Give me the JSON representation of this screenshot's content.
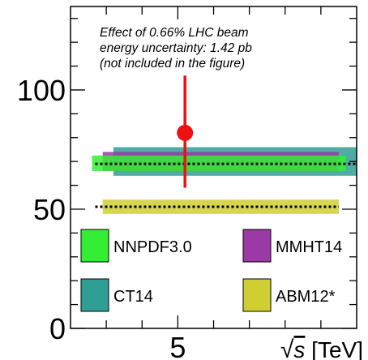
{
  "chart_data": {
    "type": "scatter",
    "title": "",
    "xlabel_prefix": "√",
    "xlabel_var": "s",
    "xlabel_unit": " [TeV]",
    "ylabel": "",
    "xlim": [
      4.7,
      5.5
    ],
    "ylim": [
      0,
      135
    ],
    "x_ticks": [
      5
    ],
    "x_tick_labels": [
      "5"
    ],
    "y_ticks": [
      0,
      50,
      100
    ],
    "y_tick_labels": [
      "0",
      "50",
      "100"
    ],
    "annotation": [
      "Effect of 0.66% LHC beam",
      "energy uncertainty: 1.42 pb",
      "(not included in the figure)"
    ],
    "measurement": {
      "x": 5.02,
      "y": 82,
      "yerr_low": 23,
      "yerr_high": 24
    },
    "bands": [
      {
        "name": "CT14",
        "central": 69,
        "low": 64,
        "high": 76,
        "x_range": [
          4.82,
          5.5
        ],
        "color": "#2f9e94"
      },
      {
        "name": "MMHT14",
        "central": 69,
        "low": 66,
        "high": 74,
        "x_range": [
          4.79,
          5.45
        ],
        "color": "#9b3aa6"
      },
      {
        "name": "NNPDF3.0",
        "central": 69,
        "low": 66,
        "high": 72.5,
        "x_range": [
          4.76,
          5.47
        ],
        "color": "#33ee33"
      },
      {
        "name": "ABM12*",
        "central": 51,
        "low": 48,
        "high": 54,
        "x_range": [
          4.79,
          5.45
        ],
        "color": "#cfcf33"
      }
    ],
    "legend": [
      "NNPDF3.0",
      "MMHT14",
      "CT14",
      "ABM12*"
    ],
    "legend_colors": {
      "NNPDF3.0": "#33ee33",
      "MMHT14": "#9b3aa6",
      "CT14": "#2f9e94",
      "ABM12*": "#cfcf33"
    },
    "measurement_color": "#ee1111",
    "grid": false,
    "legend_position": "bottom"
  }
}
